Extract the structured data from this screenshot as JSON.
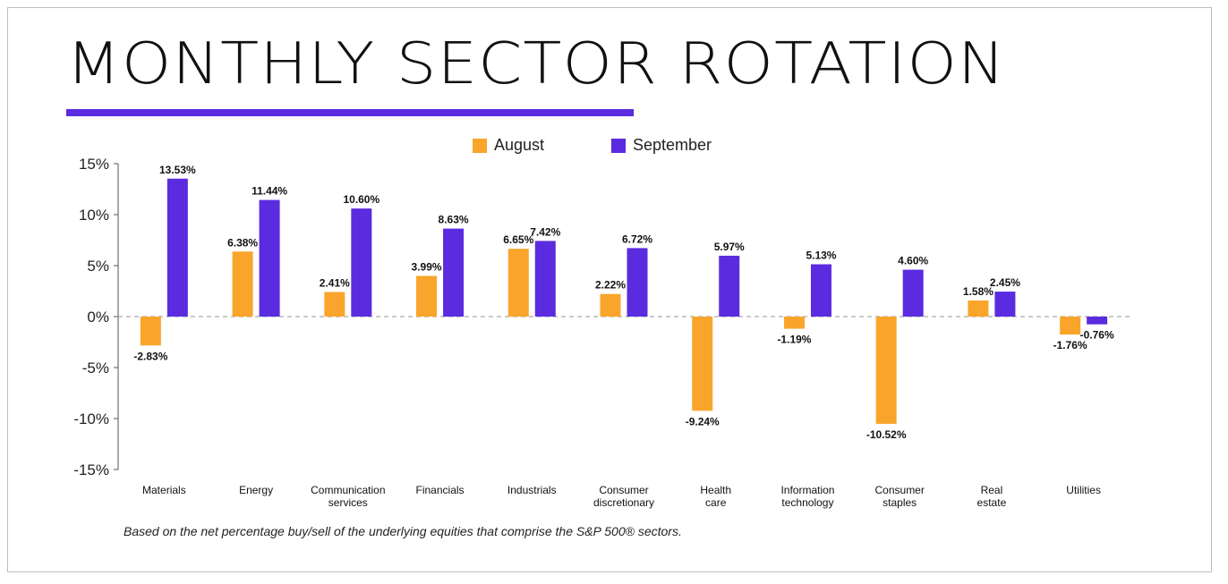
{
  "page": {
    "title": "MONTHLY SECTOR ROTATION",
    "caption": "Based on the net percentage buy/sell of the underlying equities that comprise the S&P 500® sectors.",
    "accent_color": "#5b2be0"
  },
  "chart_data": {
    "type": "bar",
    "categories": [
      [
        "Materials"
      ],
      [
        "Energy"
      ],
      [
        "Communication",
        "services"
      ],
      [
        "Financials"
      ],
      [
        "Industrials"
      ],
      [
        "Consumer",
        "discretionary"
      ],
      [
        "Health",
        "care"
      ],
      [
        "Information",
        "technology"
      ],
      [
        "Consumer",
        "staples"
      ],
      [
        "Real",
        "estate"
      ],
      [
        "Utilities"
      ]
    ],
    "series": [
      {
        "name": "August",
        "color": "#f9a52b",
        "values": [
          -2.83,
          6.38,
          2.41,
          3.99,
          6.65,
          2.22,
          -9.24,
          -1.19,
          -10.52,
          1.58,
          -1.76
        ],
        "labels": [
          "-2.83%",
          "6.38%",
          "2.41%",
          "3.99%",
          "6.65%",
          "2.22%",
          "-9.24%",
          "-1.19%",
          "-10.52%",
          "1.58%",
          "-1.76%"
        ]
      },
      {
        "name": "September",
        "color": "#5b2be0",
        "values": [
          13.53,
          11.44,
          10.6,
          8.63,
          7.42,
          6.72,
          5.97,
          5.13,
          4.6,
          2.45,
          -0.76
        ],
        "labels": [
          "13.53%",
          "11.44%",
          "10.60%",
          "8.63%",
          "7.42%",
          "6.72%",
          "5.97%",
          "5.13%",
          "4.60%",
          "2.45%",
          "-0.76%"
        ]
      }
    ],
    "ylim": [
      -15,
      15
    ],
    "y_ticks": [
      15,
      10,
      5,
      0,
      -5,
      -10,
      -15
    ],
    "y_tick_labels": [
      "15%",
      "10%",
      "5%",
      "0%",
      "-5%",
      "-10%",
      "-15%"
    ],
    "zero_line": "dashed",
    "grid": false,
    "legend_position": "top-center"
  }
}
